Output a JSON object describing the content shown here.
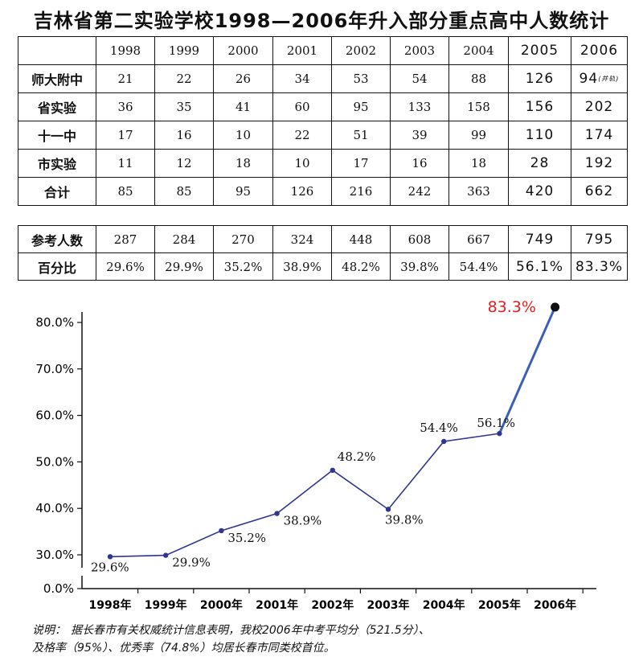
{
  "title": "吉林省第二实验学校1998—2006年升入部分重点高中人数统计",
  "table": {
    "years": [
      "1998",
      "1999",
      "2000",
      "2001",
      "2002",
      "2003",
      "2004",
      "2005",
      "2006"
    ],
    "rows": [
      {
        "label": "师大附中",
        "values": [
          "21",
          "22",
          "26",
          "34",
          "53",
          "54",
          "88",
          "126",
          "94"
        ],
        "note": "(并轨)"
      },
      {
        "label": "省实验",
        "values": [
          "36",
          "35",
          "41",
          "60",
          "95",
          "133",
          "158",
          "156",
          "202"
        ]
      },
      {
        "label": "十一中",
        "values": [
          "17",
          "16",
          "10",
          "22",
          "51",
          "39",
          "99",
          "110",
          "174"
        ]
      },
      {
        "label": "市实验",
        "values": [
          "11",
          "12",
          "18",
          "10",
          "17",
          "16",
          "18",
          "28",
          "192"
        ]
      },
      {
        "label": "合计",
        "values": [
          "85",
          "85",
          "95",
          "126",
          "216",
          "242",
          "363",
          "420",
          "662"
        ]
      }
    ]
  },
  "table2": {
    "rows": [
      {
        "label": "参考人数",
        "values": [
          "287",
          "284",
          "270",
          "324",
          "448",
          "608",
          "667",
          "749",
          "795"
        ]
      },
      {
        "label": "百分比",
        "values": [
          "29.6%",
          "29.9%",
          "35.2%",
          "38.9%",
          "48.2%",
          "39.8%",
          "54.4%",
          "56.1%",
          "83.3%"
        ]
      }
    ]
  },
  "chart_data": {
    "type": "line",
    "categories": [
      "1998年",
      "1999年",
      "2000年",
      "2001年",
      "2002年",
      "2003年",
      "2004年",
      "2005年",
      "2006年"
    ],
    "values": [
      29.6,
      29.9,
      35.2,
      38.9,
      48.2,
      39.8,
      54.4,
      56.1,
      83.3
    ],
    "data_labels": [
      "29.6%",
      "29.9%",
      "35.2%",
      "38.9%",
      "48.2%",
      "39.8%",
      "54.4%",
      "56.1%",
      "83.3%"
    ],
    "yticks": [
      0,
      30,
      40,
      50,
      60,
      70,
      80
    ],
    "ytick_labels": [
      "0.0%",
      "30.0%",
      "40.0%",
      "50.0%",
      "60.0%",
      "70.0%",
      "80.0%"
    ],
    "ylim": [
      0,
      80
    ],
    "axis_break": true,
    "grid": false,
    "title": "",
    "xlabel": "",
    "ylabel": "",
    "colors": {
      "line": "#2e3592",
      "last_segment": "#3a5fb8",
      "highlight_label": "#e02020",
      "last_point": "#111111"
    }
  },
  "footnote": {
    "lead": "说明：",
    "line1": "据长春市有关权威统计信息表明，我校2006年中考平均分（521.5分）、",
    "line2": "及格率（95%）、优秀率（74.8%）均居长春市同类校首位。"
  }
}
